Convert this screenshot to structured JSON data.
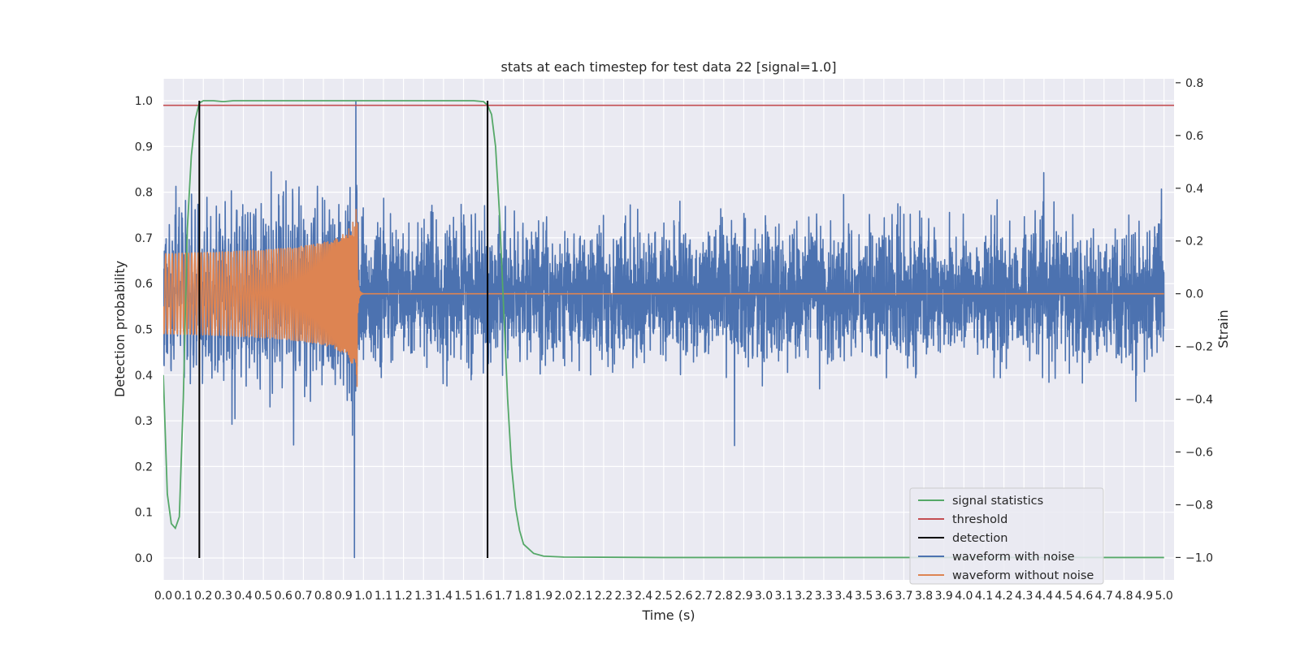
{
  "chart_data": {
    "type": "line",
    "title": "stats at each timestep for test data 22 [signal=1.0]",
    "xlabel": "Time (s)",
    "ylabel": "Detection probability",
    "y2label": "Strain",
    "xlim": [
      0.0,
      5.05
    ],
    "ylim": [
      -0.048,
      1.048
    ],
    "y2lim": [
      -1.085,
      0.815
    ],
    "grid": true,
    "legend_position": "lower-right",
    "x_ticks": [
      "0.0",
      "0.1",
      "0.2",
      "0.3",
      "0.4",
      "0.5",
      "0.6",
      "0.7",
      "0.8",
      "0.9",
      "1.0",
      "1.1",
      "1.2",
      "1.3",
      "1.4",
      "1.5",
      "1.6",
      "1.7",
      "1.8",
      "1.9",
      "2.0",
      "2.1",
      "2.2",
      "2.3",
      "2.4",
      "2.5",
      "2.6",
      "2.7",
      "2.8",
      "2.9",
      "3.0",
      "3.1",
      "3.2",
      "3.3",
      "3.4",
      "3.5",
      "3.6",
      "3.7",
      "3.8",
      "3.9",
      "4.0",
      "4.1",
      "4.2",
      "4.3",
      "4.4",
      "4.5",
      "4.6",
      "4.7",
      "4.8",
      "4.9",
      "5.0"
    ],
    "y_ticks": [
      "0.0",
      "0.1",
      "0.2",
      "0.3",
      "0.4",
      "0.5",
      "0.6",
      "0.7",
      "0.8",
      "0.9",
      "1.0"
    ],
    "y2_ticks": [
      "−1.0",
      "−0.8",
      "−0.6",
      "−0.4",
      "−0.2",
      "0.0",
      "0.2",
      "0.4",
      "0.6",
      "0.8"
    ],
    "threshold": 0.99,
    "detections": [
      0.18,
      1.62
    ],
    "signal_statistics": {
      "x": [
        0.0,
        0.02,
        0.04,
        0.06,
        0.08,
        0.1,
        0.12,
        0.14,
        0.16,
        0.18,
        0.2,
        0.25,
        0.3,
        0.35,
        0.4,
        0.5,
        0.6,
        0.8,
        1.0,
        1.2,
        1.4,
        1.55,
        1.6,
        1.62,
        1.64,
        1.66,
        1.68,
        1.7,
        1.72,
        1.74,
        1.76,
        1.78,
        1.8,
        1.85,
        1.9,
        2.0,
        2.5,
        3.0,
        4.0,
        5.0
      ],
      "y": [
        0.4,
        0.14,
        0.075,
        0.065,
        0.09,
        0.35,
        0.72,
        0.88,
        0.96,
        0.995,
        1.0,
        1.0,
        0.998,
        1.0,
        1.0,
        1.0,
        1.0,
        1.0,
        1.0,
        1.0,
        1.0,
        1.0,
        0.998,
        0.99,
        0.97,
        0.9,
        0.75,
        0.55,
        0.35,
        0.2,
        0.11,
        0.06,
        0.03,
        0.01,
        0.004,
        0.002,
        0.001,
        0.001,
        0.001,
        0.001
      ]
    },
    "series": [
      {
        "name": "signal statistics",
        "color": "#55a868",
        "axis": "left"
      },
      {
        "name": "threshold",
        "color": "#c44e52",
        "axis": "left"
      },
      {
        "name": "detection",
        "color": "#000000",
        "axis": "left"
      },
      {
        "name": "waveform with noise",
        "color": "#4c72b0",
        "axis": "right"
      },
      {
        "name": "waveform without noise",
        "color": "#dd8452",
        "axis": "right"
      }
    ],
    "waveform_with_noise": {
      "x_range": [
        0.0,
        5.0
      ],
      "strain_range": [
        -1.0,
        0.73
      ],
      "noise_std": 0.12,
      "min_strain": -1.0,
      "max_strain": 0.73
    },
    "waveform_without_noise": {
      "x_range": [
        0.0,
        5.0
      ],
      "merger_time": 0.97,
      "amplitude_start": 0.1,
      "amplitude_peak": 0.38,
      "strain_after_merger": 0.0
    }
  }
}
